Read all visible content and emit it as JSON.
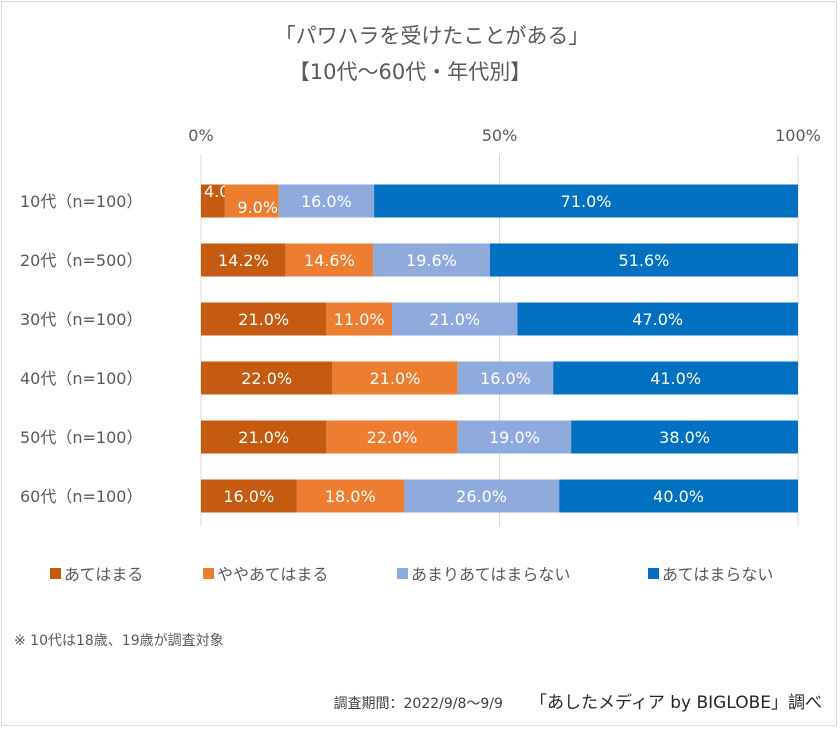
{
  "chart_data": {
    "type": "bar",
    "orientation": "horizontal",
    "stacked": true,
    "normalized": true,
    "title": "「パワハラを受けたことがある」",
    "subtitle": "【10代～60代・年代別】",
    "xlabel": "",
    "ylabel": "",
    "xlim": [
      0,
      100
    ],
    "x_ticks": [
      "0%",
      "50%",
      "100%"
    ],
    "x_tick_values": [
      0,
      50,
      100
    ],
    "grid": true,
    "legend_position": "bottom",
    "categories": [
      "10代（n=100）",
      "20代（n=500）",
      "30代（n=100）",
      "40代（n=100）",
      "50代（n=100）",
      "60代（n=100）"
    ],
    "series": [
      {
        "name": "あてはまる",
        "color": "#C55A11",
        "values": [
          4.0,
          14.2,
          21.0,
          22.0,
          21.0,
          16.0
        ]
      },
      {
        "name": "ややあてはまる",
        "color": "#ED7D31",
        "values": [
          9.0,
          14.6,
          11.0,
          21.0,
          22.0,
          18.0
        ]
      },
      {
        "name": "あまりあてはまらない",
        "color": "#8FAADC",
        "values": [
          16.0,
          19.6,
          21.0,
          16.0,
          19.0,
          26.0
        ]
      },
      {
        "name": "あてはまらない",
        "color": "#0070C0",
        "values": [
          71.0,
          51.6,
          47.0,
          41.0,
          38.0,
          40.0
        ]
      }
    ],
    "data_label_format": "0.0%"
  },
  "note": "※ 10代は18歳、19歳が調査対象",
  "footer": {
    "period": "調査期間：2022/9/8～9/9",
    "source": "「あしたメディア by BIGLOBE」調べ"
  }
}
